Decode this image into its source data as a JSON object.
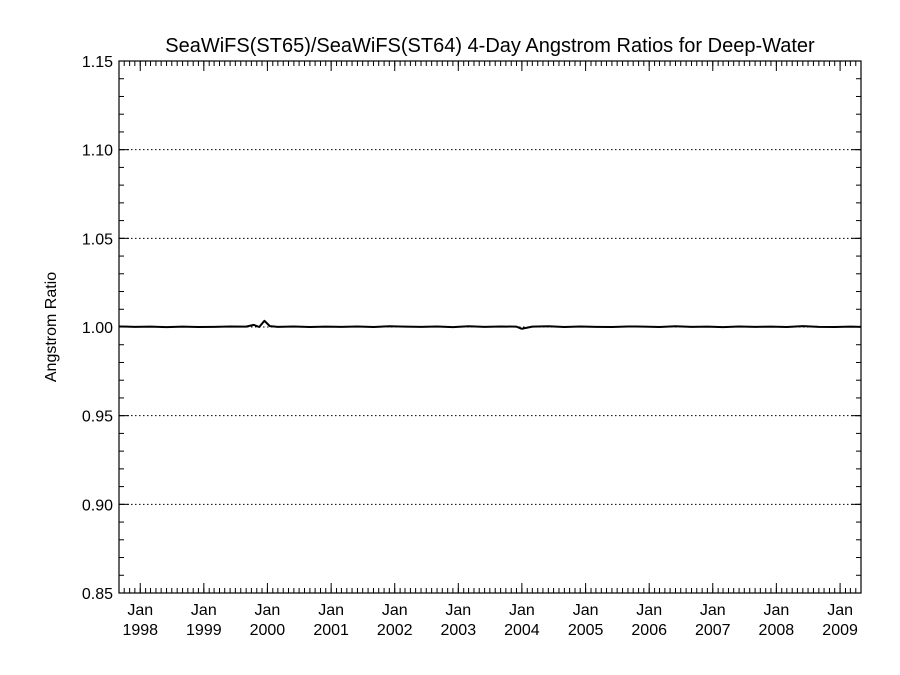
{
  "chart_data": {
    "type": "line",
    "title": "SeaWiFS(ST65)/SeaWiFS(ST64) 4-Day Angstrom Ratios for Deep-Water",
    "xlabel": "",
    "ylabel": "Angstrom Ratio",
    "ylim": [
      0.85,
      1.15
    ],
    "y_ticks": [
      0.85,
      0.9,
      0.95,
      1.0,
      1.05,
      1.1,
      1.15
    ],
    "y_tick_labels": [
      "0.85",
      "0.90",
      "0.95",
      "1.00",
      "1.05",
      "1.10",
      "1.15"
    ],
    "y_minor_step": 0.01,
    "xlim": [
      "1997-09-01",
      "2009-05-01"
    ],
    "x_ticks": [
      {
        "date": "1998-01-01",
        "month": "Jan",
        "year": "1998"
      },
      {
        "date": "1999-01-01",
        "month": "Jan",
        "year": "1999"
      },
      {
        "date": "2000-01-01",
        "month": "Jan",
        "year": "2000"
      },
      {
        "date": "2001-01-01",
        "month": "Jan",
        "year": "2001"
      },
      {
        "date": "2002-01-01",
        "month": "Jan",
        "year": "2002"
      },
      {
        "date": "2003-01-01",
        "month": "Jan",
        "year": "2003"
      },
      {
        "date": "2004-01-01",
        "month": "Jan",
        "year": "2004"
      },
      {
        "date": "2005-01-01",
        "month": "Jan",
        "year": "2005"
      },
      {
        "date": "2006-01-01",
        "month": "Jan",
        "year": "2006"
      },
      {
        "date": "2007-01-01",
        "month": "Jan",
        "year": "2007"
      },
      {
        "date": "2008-01-01",
        "month": "Jan",
        "year": "2008"
      },
      {
        "date": "2009-01-01",
        "month": "Jan",
        "year": "2009"
      }
    ],
    "grid": "dotted horizontal at major y ticks",
    "series": [
      {
        "color": "#000000",
        "x": [
          "1997-09-01",
          "1997-12-01",
          "1998-03-01",
          "1998-06-01",
          "1998-09-01",
          "1998-12-01",
          "1999-03-01",
          "1999-06-01",
          "1999-09-01",
          "1999-10-15",
          "1999-11-15",
          "1999-12-15",
          "2000-01-15",
          "2000-03-01",
          "2000-06-01",
          "2000-09-01",
          "2000-12-01",
          "2001-03-01",
          "2001-06-01",
          "2001-09-01",
          "2001-12-01",
          "2002-03-01",
          "2002-06-01",
          "2002-09-01",
          "2002-12-01",
          "2003-03-01",
          "2003-06-01",
          "2003-09-01",
          "2003-12-01",
          "2004-01-01",
          "2004-03-01",
          "2004-06-01",
          "2004-09-01",
          "2004-12-01",
          "2005-03-01",
          "2005-06-01",
          "2005-09-01",
          "2005-12-01",
          "2006-03-01",
          "2006-06-01",
          "2006-09-01",
          "2006-12-01",
          "2007-03-01",
          "2007-06-01",
          "2007-09-01",
          "2007-12-01",
          "2008-03-01",
          "2008-06-01",
          "2008-09-01",
          "2008-12-01",
          "2009-03-01",
          "2009-05-01"
        ],
        "y": [
          1.0003,
          1.0001,
          1.0002,
          0.9999,
          1.0002,
          1.0,
          1.0001,
          1.0003,
          1.0002,
          1.0012,
          1.0,
          1.0035,
          1.0005,
          1.0001,
          1.0003,
          1.0,
          1.0002,
          1.0001,
          1.0003,
          1.0,
          1.0004,
          1.0002,
          1.0001,
          1.0003,
          0.9999,
          1.0004,
          1.0001,
          1.0003,
          1.0002,
          0.999,
          1.0002,
          1.0004,
          1.0,
          1.0003,
          1.0001,
          1.0,
          1.0003,
          1.0002,
          1.0,
          1.0004,
          1.0001,
          1.0002,
          0.9999,
          1.0003,
          1.0001,
          1.0002,
          1.0,
          1.0005,
          1.0001,
          1.0,
          1.0002,
          1.0001
        ]
      }
    ]
  }
}
